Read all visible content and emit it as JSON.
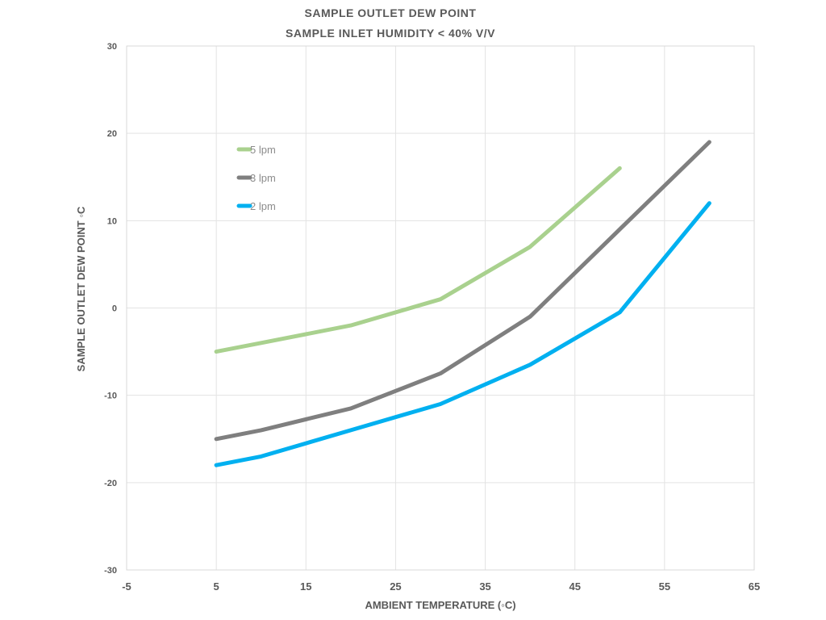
{
  "chart_data": {
    "type": "line",
    "title": "SAMPLE OUTLET DEW POINT",
    "subtitle": "SAMPLE INLET HUMIDITY < 40% V/V",
    "xlabel": "AMBIENT TEMPERATURE (◦C)",
    "ylabel": "SAMPLE OUTLET DEW POINT ◦C",
    "xlim": [
      -5,
      65
    ],
    "ylim": [
      -30,
      30
    ],
    "xticks": [
      -5,
      5,
      15,
      25,
      35,
      45,
      55,
      65
    ],
    "yticks": [
      -30,
      -20,
      -10,
      0,
      10,
      20,
      30
    ],
    "grid": true,
    "legend_position": "top-left",
    "series": [
      {
        "name": "5 lpm",
        "color": "#a9d18e",
        "x": [
          5,
          10,
          20,
          30,
          40,
          50
        ],
        "y": [
          -5,
          -4,
          -2,
          1,
          7,
          16
        ]
      },
      {
        "name": "3 lpm",
        "color": "#7f7f7f",
        "x": [
          5,
          10,
          20,
          30,
          40,
          50,
          60
        ],
        "y": [
          -15,
          -14,
          -11.5,
          -7.5,
          -1,
          9,
          19
        ]
      },
      {
        "name": "2 lpm",
        "color": "#00b0f0",
        "x": [
          5,
          10,
          20,
          30,
          40,
          50,
          60
        ],
        "y": [
          -18,
          -17,
          -14,
          -11,
          -6.5,
          -0.5,
          12
        ]
      }
    ]
  }
}
